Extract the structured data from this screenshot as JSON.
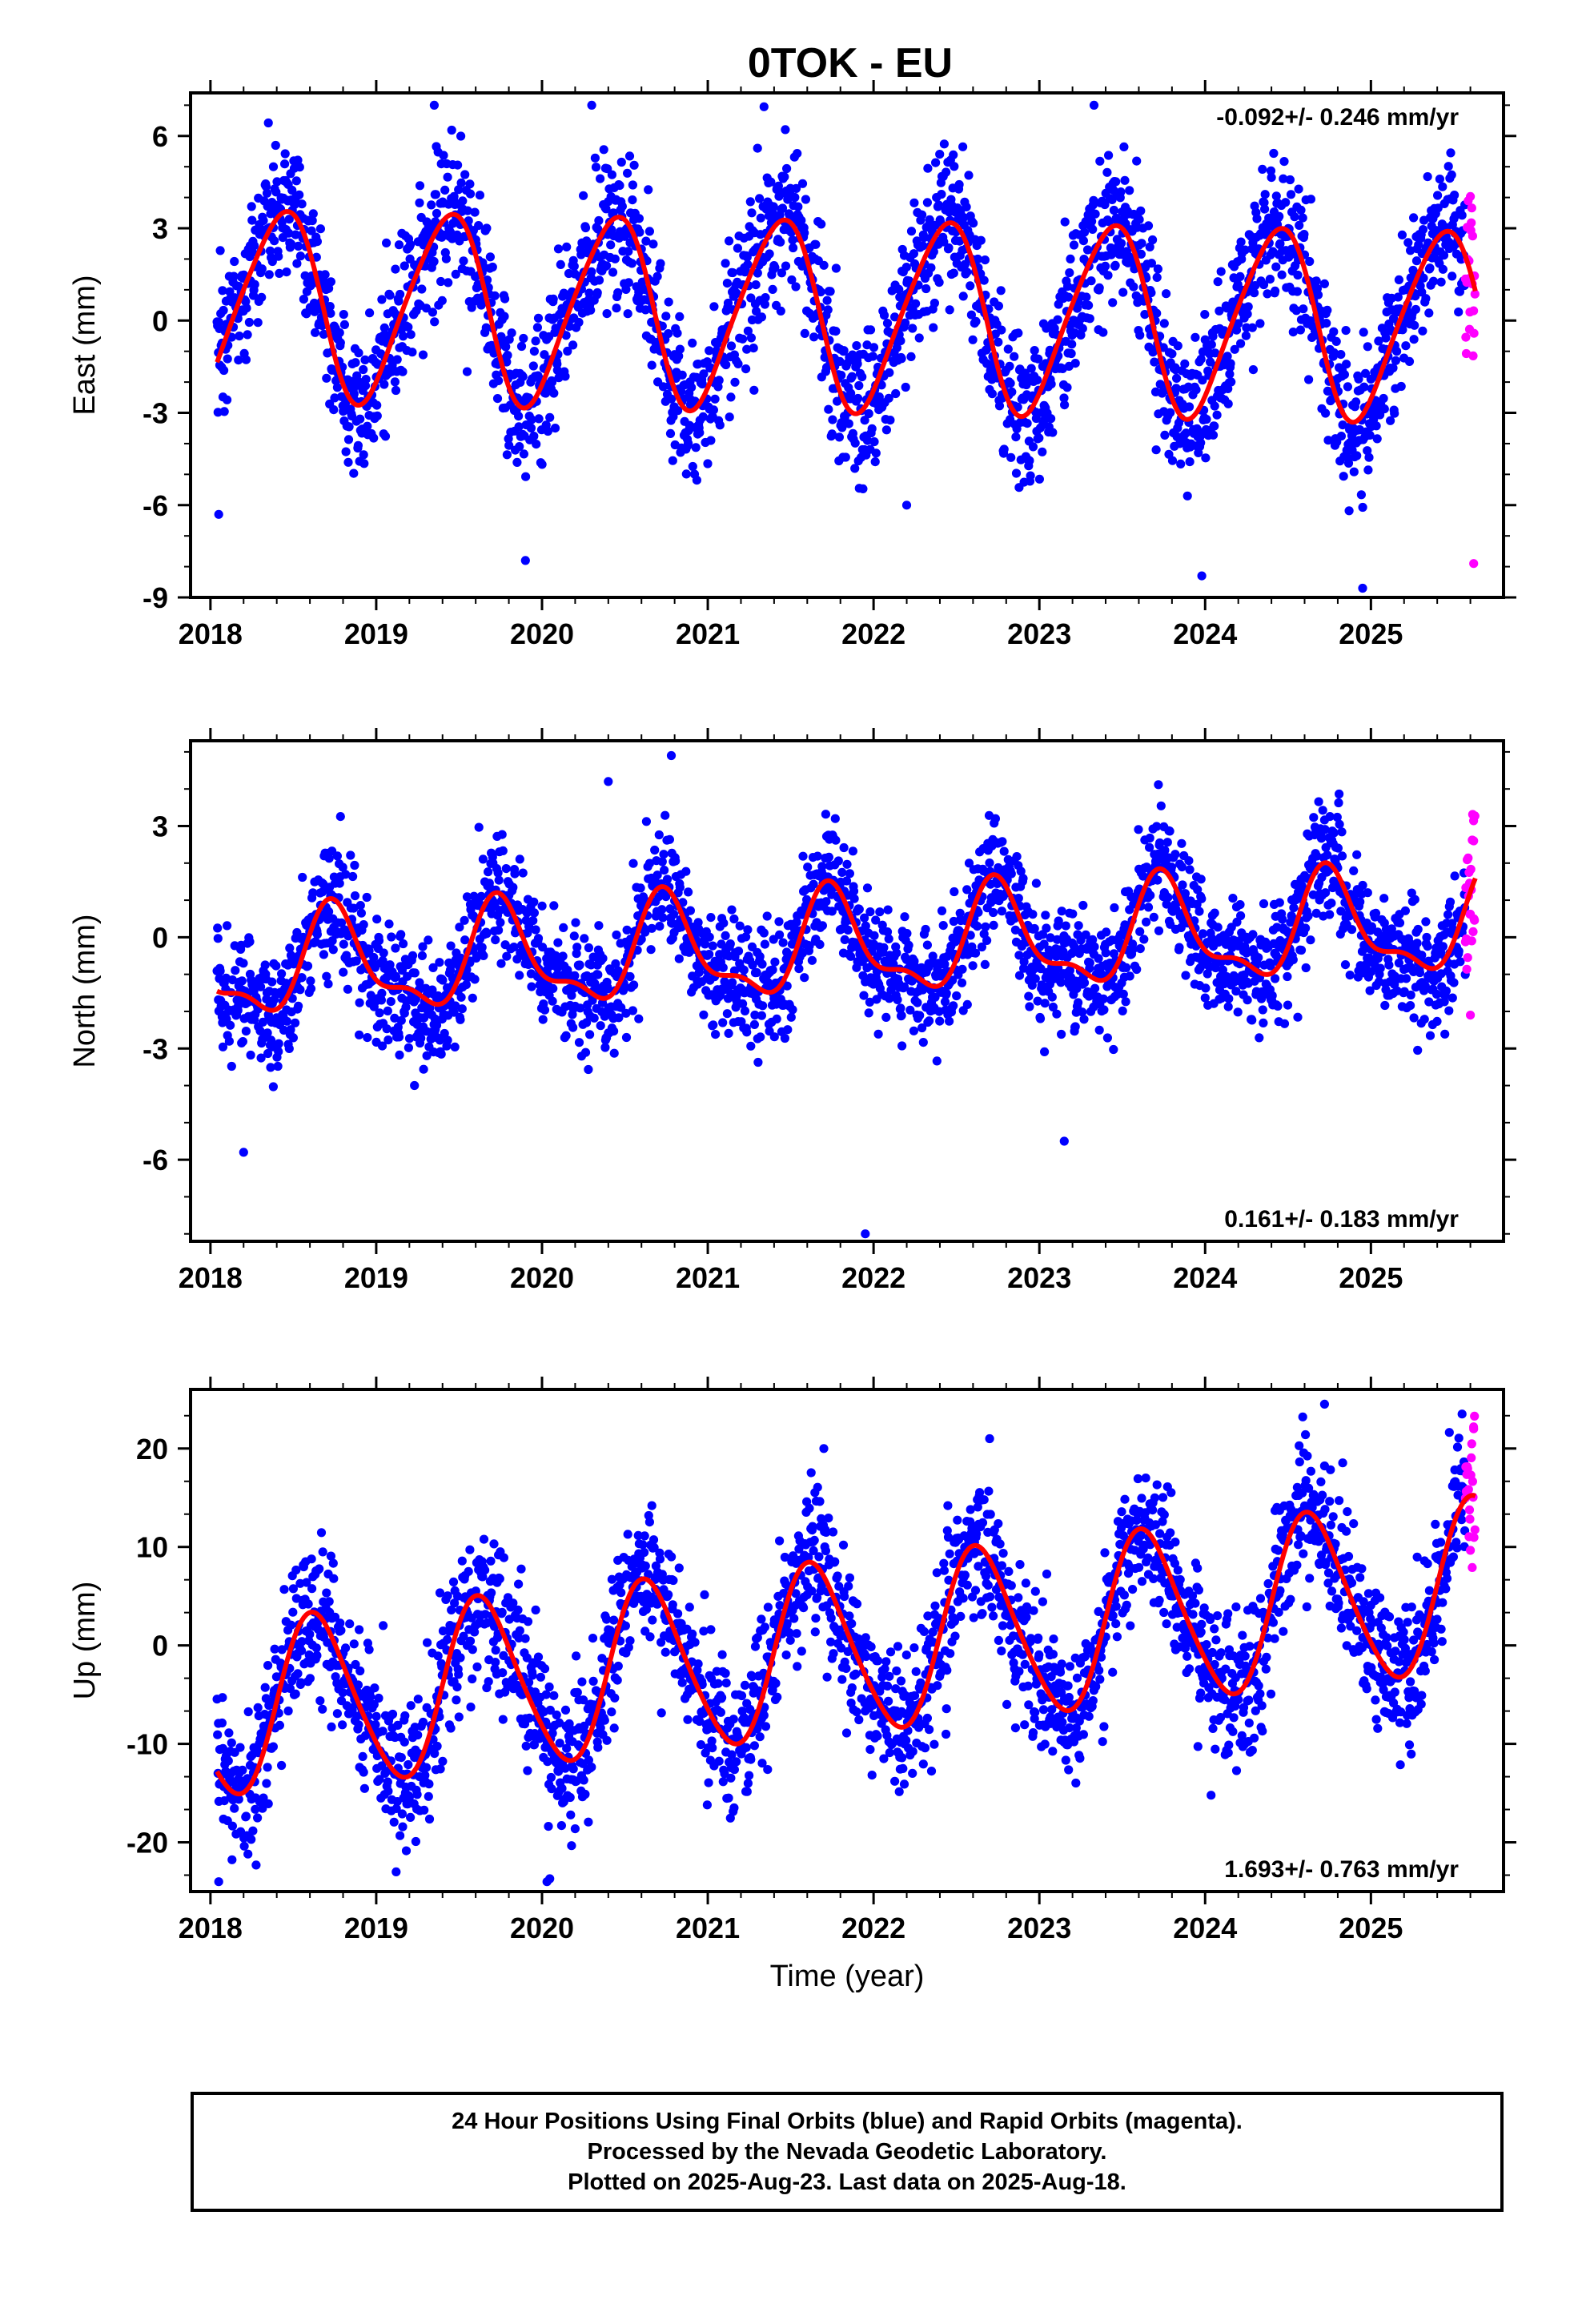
{
  "title": "0TOK - EU",
  "x_ticks": [
    "2018",
    "2019",
    "2020",
    "2021",
    "2022",
    "2023",
    "2024",
    "2025"
  ],
  "x_axis_label": "Time (year)",
  "colors": {
    "final_orbits": "#0000ff",
    "rapid_orbits": "#ff00ff",
    "model_fit": "#ff0000"
  },
  "footer": {
    "line1": "24 Hour Positions Using Final Orbits (blue) and Rapid Orbits (magenta).",
    "line2": "Processed by the Nevada Geodetic Laboratory.",
    "line3": "Plotted on 2025-Aug-23. Last data on 2025-Aug-18."
  },
  "chart_data": [
    {
      "type": "scatter",
      "ylabel": "East (mm)",
      "rate_label": "-0.092+/- 0.246 mm/yr",
      "rate_position": "top-right",
      "xlim": [
        2017.88,
        2025.8
      ],
      "ylim": [
        -9,
        7.4
      ],
      "y_ticks": [
        "6",
        "3",
        "0",
        "-3",
        "-6",
        "-9"
      ],
      "y_tick_values": [
        6,
        3,
        0,
        -3,
        -6,
        -9
      ],
      "data_start": 2018.04,
      "data_end": 2025.63,
      "rapid_start": 2025.57,
      "model": {
        "offset": 0.2,
        "trend_mm_per_yr": -0.092,
        "reference_epoch": 2021.8,
        "annual_cos": -2.7,
        "annual_sin": 1.4,
        "semiannual_cos": 0.25,
        "semiannual_sin": 0.3
      },
      "scatter_sd": 1.2,
      "samples": [
        {
          "x": 2018.05,
          "y": -6.3
        },
        {
          "x": 2018.38,
          "y": 5.0
        },
        {
          "x": 2019.35,
          "y": 7.0
        },
        {
          "x": 2019.9,
          "y": -7.8
        },
        {
          "x": 2020.3,
          "y": 7.0
        },
        {
          "x": 2021.3,
          "y": 5.6
        },
        {
          "x": 2022.2,
          "y": -6.0
        },
        {
          "x": 2023.33,
          "y": 7.0
        },
        {
          "x": 2023.98,
          "y": -8.3
        },
        {
          "x": 2024.95,
          "y": -8.7
        },
        {
          "x": 2025.62,
          "y": -7.9
        }
      ]
    },
    {
      "type": "scatter",
      "ylabel": "North (mm)",
      "rate_label": "0.161+/- 0.183 mm/yr",
      "rate_position": "bottom-right",
      "xlim": [
        2017.88,
        2025.8
      ],
      "ylim": [
        -8.2,
        5.3
      ],
      "y_ticks": [
        "3",
        "0",
        "-3",
        "-6"
      ],
      "y_tick_values": [
        3,
        0,
        -3,
        -6
      ],
      "data_start": 2018.04,
      "data_end": 2025.63,
      "rapid_start": 2025.57,
      "model": {
        "offset": -0.25,
        "trend_mm_per_yr": 0.161,
        "reference_epoch": 2021.8,
        "annual_cos": 0.0,
        "annual_sin": -1.3,
        "semiannual_cos": -0.45,
        "semiannual_sin": 0.25
      },
      "scatter_sd": 0.8,
      "samples": [
        {
          "x": 2018.2,
          "y": -5.8
        },
        {
          "x": 2020.4,
          "y": 4.2
        },
        {
          "x": 2020.78,
          "y": 4.9
        },
        {
          "x": 2021.95,
          "y": -8.0
        },
        {
          "x": 2023.15,
          "y": -5.5
        },
        {
          "x": 2025.62,
          "y": 2.6
        },
        {
          "x": 2025.6,
          "y": -2.1
        }
      ]
    },
    {
      "type": "scatter",
      "ylabel": "Up (mm)",
      "rate_label": "1.693+/- 0.763 mm/yr",
      "rate_position": "bottom-right",
      "xlim": [
        2017.88,
        2025.8
      ],
      "ylim": [
        -25,
        26
      ],
      "y_ticks": [
        "20",
        "10",
        "0",
        "-10",
        "-20"
      ],
      "y_tick_values": [
        20,
        10,
        0,
        -10,
        -20
      ],
      "data_start": 2018.04,
      "data_end": 2025.63,
      "rapid_start": 2025.57,
      "model": {
        "offset": -0.4,
        "trend_mm_per_yr": 1.693,
        "reference_epoch": 2021.8,
        "annual_cos": -5.6,
        "annual_sin": -6.6,
        "semiannual_cos": 0.9,
        "semiannual_sin": 0.5
      },
      "scatter_sd": 3.6,
      "samples": [
        {
          "x": 2018.05,
          "y": -24.0
        },
        {
          "x": 2019.12,
          "y": -23.0
        },
        {
          "x": 2020.03,
          "y": -24.0
        },
        {
          "x": 2021.7,
          "y": 20.0
        },
        {
          "x": 2022.7,
          "y": 21.0
        },
        {
          "x": 2024.72,
          "y": 24.5
        },
        {
          "x": 2025.55,
          "y": 23.5
        },
        {
          "x": 2025.62,
          "y": 22.0
        }
      ]
    }
  ]
}
